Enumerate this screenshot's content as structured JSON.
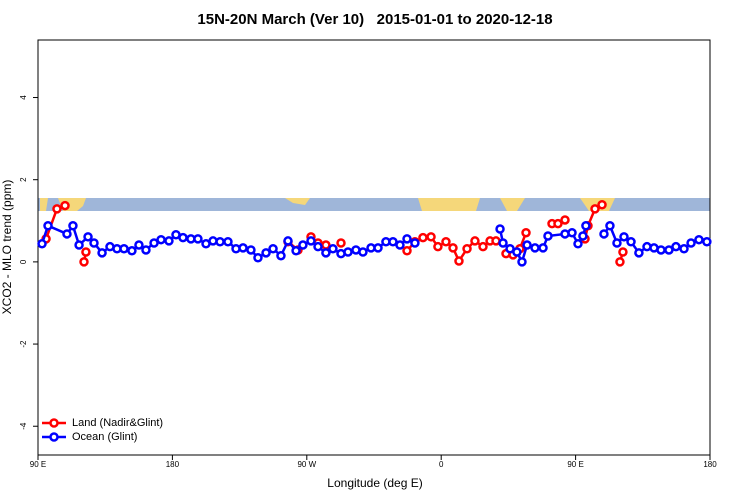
{
  "chart_data": {
    "type": "line",
    "title": "15N-20N March (Ver 10)   2015-01-01 to 2020-12-18",
    "x_label": "Longitude (deg E)",
    "y_label": "XCO2 - MLO trend (ppm)",
    "xlim": [
      90,
      540
    ],
    "xticks": [
      {
        "value": 90,
        "label": "90 E"
      },
      {
        "value": 180,
        "label": "180"
      },
      {
        "value": 270,
        "label": "90 W"
      },
      {
        "value": 360,
        "label": "0"
      },
      {
        "value": 450,
        "label": "90 E"
      },
      {
        "value": 540,
        "label": "180"
      }
    ],
    "ylim": [
      -4.7,
      5.4
    ],
    "yticks": [
      -4,
      -2,
      0,
      2,
      4
    ],
    "legend": "bottom-left",
    "series": [
      {
        "name": "Land (Nadir&Glint)",
        "color": "#ff0000",
        "x": [
          95.4,
          102.7,
          108.1,
          null,
          120.8,
          122.1,
          null,
          257.4,
          264.1,
          null,
          272.8,
          277.5,
          282.8,
          null,
          292.9,
          null,
          337.1,
          342.4,
          347.8,
          353.2,
          357.8,
          363.2,
          367.9,
          371.9,
          377.3,
          382.6,
          388.0,
          392.7,
          396.7,
          null,
          403.4,
          408.1,
          412.7,
          416.8,
          null,
          434.2,
          438.2,
          442.9,
          null,
          456.3,
          458.3,
          463.0,
          467.7,
          null,
          479.7,
          481.7
        ],
        "values": [
          0.56,
          1.29,
          1.37,
          null,
          0.0,
          0.24,
          null,
          0.49,
          0.29,
          null,
          0.61,
          0.46,
          0.41,
          null,
          0.46,
          null,
          0.27,
          0.49,
          0.59,
          0.61,
          0.37,
          0.49,
          0.34,
          0.02,
          0.32,
          0.51,
          0.37,
          0.51,
          0.51,
          null,
          0.2,
          0.17,
          0.32,
          0.71,
          null,
          0.93,
          0.93,
          1.02,
          null,
          0.56,
          0.88,
          1.29,
          1.39,
          null,
          0.0,
          0.24
        ]
      },
      {
        "name": "Ocean (Glint)",
        "color": "#0000ff",
        "x": [
          92.7,
          96.7,
          109.4,
          113.4,
          117.5,
          123.5,
          127.5,
          132.9,
          138.2,
          142.9,
          147.6,
          152.9,
          157.6,
          162.3,
          167.7,
          172.4,
          177.7,
          182.4,
          187.1,
          192.4,
          197.1,
          202.5,
          207.2,
          211.9,
          217.2,
          222.6,
          227.3,
          232.6,
          237.3,
          242.7,
          247.4,
          252.7,
          257.4,
          262.8,
          267.4,
          272.8,
          277.5,
          282.8,
          287.5,
          292.9,
          297.6,
          302.9,
          307.6,
          313.0,
          317.7,
          323.0,
          327.7,
          332.4,
          337.1,
          342.4,
          null,
          399.4,
          401.4,
          406.1,
          410.7,
          414.1,
          417.5,
          422.8,
          428.2,
          431.5,
          442.9,
          447.6,
          451.6,
          454.9,
          456.9,
          null,
          469.0,
          473.0,
          477.7,
          482.4,
          487.1,
          492.4,
          497.8,
          502.5,
          507.2,
          512.5,
          517.2,
          522.6,
          527.3,
          532.6,
          537.9
        ],
        "values": [
          0.44,
          0.88,
          0.68,
          0.88,
          0.41,
          0.61,
          0.46,
          0.22,
          0.37,
          0.32,
          0.32,
          0.27,
          0.41,
          0.29,
          0.46,
          0.54,
          0.51,
          0.66,
          0.59,
          0.56,
          0.56,
          0.44,
          0.51,
          0.49,
          0.49,
          0.32,
          0.34,
          0.29,
          0.1,
          0.22,
          0.32,
          0.15,
          0.51,
          0.27,
          0.41,
          0.51,
          0.37,
          0.22,
          0.32,
          0.2,
          0.24,
          0.29,
          0.24,
          0.34,
          0.34,
          0.49,
          0.49,
          0.41,
          0.56,
          0.46,
          null,
          0.8,
          0.46,
          0.32,
          0.24,
          0.0,
          0.41,
          0.34,
          0.34,
          0.63,
          0.68,
          0.71,
          0.44,
          0.63,
          0.88,
          null,
          0.68,
          0.88,
          0.46,
          0.61,
          0.49,
          0.22,
          0.37,
          0.34,
          0.29,
          0.29,
          0.37,
          0.32,
          0.46,
          0.54,
          0.49
        ]
      }
    ]
  }
}
